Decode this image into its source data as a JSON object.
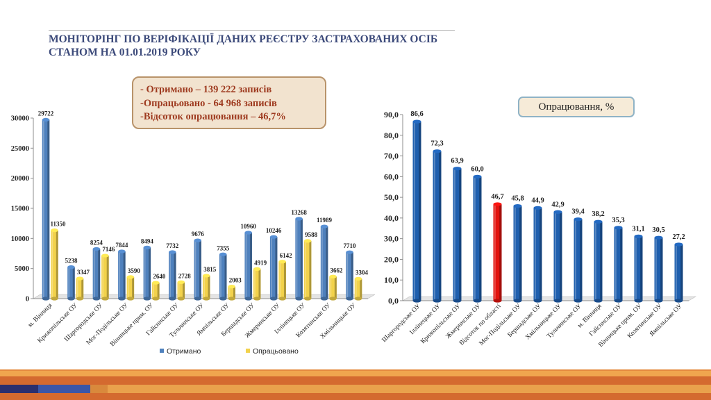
{
  "header": {
    "title_line1": "МОНІТОРІНГ ПО ВЕРІФІКАЦІЇ ДАНИХ РЕЄСТРУ ЗАСТРАХОВАНИХ ОСІБ",
    "title_line2": "СТАНОМ НА 01.01.2019 РОКУ"
  },
  "summary": {
    "line1": "- Отримано – 139 222 записів",
    "line2": "-Опрацьовано -  64 968 записів",
    "line3": "-Відсоток опрацювання – 46,7%"
  },
  "right_label": "Опрацювання, %",
  "colors": {
    "blue": "#4f81bd",
    "yellow": "#f2d24c",
    "red": "#e2140f",
    "dark_blue": "#1f5fae"
  },
  "chart_data": [
    {
      "type": "bar",
      "categories": [
        "м. Вінниця",
        "Крижопільське ОУ",
        "Шаргородське ОУ",
        "Мог-Подільське ОУ",
        "Вінницьке прим. ОУ",
        "Гайсинське ОУ",
        "Тульчинське ОУ",
        "Ямпільське ОУ",
        "Бершадське ОУ",
        "Жмеринське ОУ",
        "Іллінецьке ОУ",
        "Козятинське ОУ",
        "Хмільницьке ОУ"
      ],
      "series": [
        {
          "name": "Отримано",
          "values": [
            29722,
            5238,
            8254,
            7844,
            8494,
            7732,
            9676,
            7355,
            10960,
            10246,
            13268,
            11989,
            7710
          ]
        },
        {
          "name": "Опрацьовано",
          "values": [
            11350,
            3347,
            7146,
            3590,
            2640,
            2728,
            3815,
            2003,
            4919,
            6142,
            9588,
            3662,
            3304
          ]
        }
      ],
      "ylim": [
        0,
        30000
      ],
      "yticks": [
        "0",
        "5000",
        "10000",
        "15000",
        "20000",
        "25000",
        "30000"
      ],
      "legend": "bottom",
      "grid": false
    },
    {
      "type": "bar",
      "categories": [
        "Шаргородське ОУ",
        "Іллінецьке ОУ",
        "Крижопільське ОУ",
        "Жмеринське ОУ",
        "Відсоток по області",
        "Мог-Подільське ОУ",
        "Бершадське ОУ",
        "Хмільницьке ОУ",
        "Тульчинське ОУ",
        "м. Вінниця",
        "Гайсинське ОУ",
        "Вінницьке прим. ОУ",
        "Козятинське ОУ",
        "Ямпільське ОУ"
      ],
      "values": [
        86.6,
        72.3,
        63.9,
        60.0,
        46.7,
        45.8,
        44.9,
        42.9,
        39.4,
        38.2,
        35.3,
        31.1,
        30.5,
        27.2
      ],
      "value_labels": [
        "86,6",
        "72,3",
        "63,9",
        "60,0",
        "46,7",
        "45,8",
        "44,9",
        "42,9",
        "39,4",
        "38,2",
        "35,3",
        "31,1",
        "30,5",
        "27,2"
      ],
      "highlight": "Відсоток по області",
      "ylim": [
        0,
        90
      ],
      "yticks": [
        "0,0",
        "10,0",
        "20,0",
        "30,0",
        "40,0",
        "50,0",
        "60,0",
        "70,0",
        "80,0",
        "90,0"
      ],
      "grid": false
    }
  ]
}
